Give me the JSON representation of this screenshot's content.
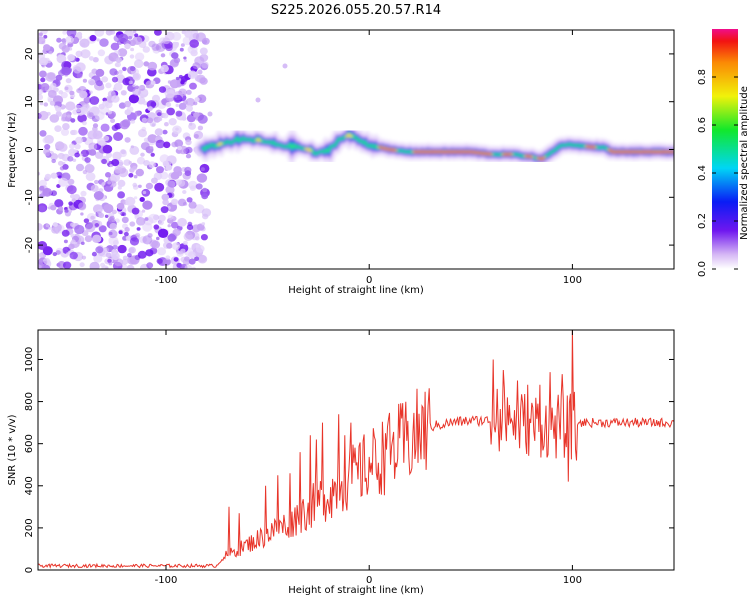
{
  "title": "S225.2026.055.20.57.R14",
  "chart_data": [
    {
      "type": "heatmap",
      "xlabel": "Height of straight line (km)",
      "ylabel": "Frequency (Hz)",
      "xlim": [
        -163,
        150
      ],
      "ylim": [
        -25,
        25
      ],
      "xticks": [
        -100,
        0,
        100
      ],
      "xtick_labels": [
        "-100",
        "0",
        "100"
      ],
      "yticks": [
        -20,
        -10,
        0,
        10,
        20
      ],
      "ytick_labels": [
        "-20",
        "-10",
        "0",
        "10",
        "20"
      ],
      "noise_region_x": [
        -163,
        -82
      ],
      "ridge": {
        "x": [
          -82,
          -75,
          -65,
          -55,
          -45,
          -35,
          -30,
          -25,
          -20,
          -15,
          -10,
          -5,
          0,
          10,
          20,
          30,
          40,
          50,
          60,
          70,
          80,
          85,
          90,
          95,
          100,
          110,
          115,
          120,
          130,
          140,
          150
        ],
        "hz": [
          0,
          1,
          2,
          2,
          1,
          0.5,
          0,
          -1,
          0,
          2,
          3,
          2,
          1,
          0,
          -0.5,
          -0.5,
          -0.5,
          -0.5,
          -1,
          -1,
          -1.5,
          -2,
          -0.5,
          1,
          1,
          0.5,
          0.5,
          -0.5,
          -0.5,
          -0.5,
          -0.5
        ]
      },
      "colorbar": {
        "label": "Normalized spectral amplitude",
        "ticks": [
          0.0,
          0.2,
          0.4,
          0.6,
          0.8
        ],
        "tick_labels": [
          "0.0",
          "0.2",
          "0.4",
          "0.6",
          "0.8"
        ],
        "range": [
          0,
          1
        ]
      }
    },
    {
      "type": "line",
      "xlabel": "Height of straight line (km)",
      "ylabel": "SNR (10 * v/v)",
      "xlim": [
        -163,
        150
      ],
      "ylim": [
        0,
        1140
      ],
      "xticks": [
        -100,
        0,
        100
      ],
      "xtick_labels": [
        "-100",
        "0",
        "100"
      ],
      "yticks": [
        0,
        200,
        400,
        600,
        800,
        1000
      ],
      "ytick_labels": [
        "0",
        "200",
        "400",
        "600",
        "800",
        "1000"
      ],
      "color": "#e8352a",
      "series": [
        {
          "name": "SNR",
          "trend": {
            "x": [
              -163,
              -75,
              -72,
              -60,
              -50,
              -40,
              -30,
              -20,
              -10,
              0,
              10,
              20,
              30,
              40,
              50,
              60,
              65,
              75,
              85,
              95,
              100,
              102,
              110,
              120,
              130,
              140,
              150
            ],
            "y": [
              20,
              20,
              60,
              120,
              170,
              220,
              290,
              360,
              430,
              500,
              560,
              620,
              680,
              700,
              710,
              710,
              720,
              700,
              690,
              680,
              680,
              700,
              700,
              700,
              700,
              700,
              700
            ]
          },
          "peaks": {
            "x": [
              -69,
              -64,
              -51,
              -45,
              -39,
              -34,
              -29,
              -26,
              -23,
              -15,
              -12,
              -9,
              8,
              9,
              61,
              63,
              66,
              68,
              73,
              78,
              84,
              89,
              95,
              98,
              100,
              102
            ],
            "y": [
              300,
              270,
              400,
              450,
              460,
              560,
              640,
              620,
              700,
              740,
              640,
              700,
              650,
              680,
              1000,
              860,
              950,
              820,
              900,
              880,
              880,
              940,
              930,
              420,
              1150,
              520
            ]
          }
        }
      ]
    }
  ]
}
